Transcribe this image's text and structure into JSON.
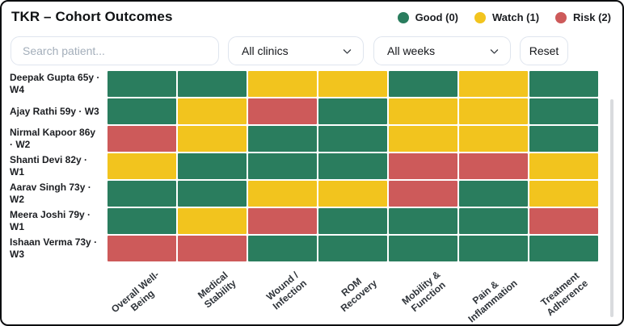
{
  "header": {
    "title": "TKR – Cohort Outcomes",
    "legend": [
      {
        "name": "good-dot",
        "label": "Good (0)",
        "color": "#2a7d5e"
      },
      {
        "name": "watch-dot",
        "label": "Watch (1)",
        "color": "#f2c41e"
      },
      {
        "name": "risk-dot",
        "label": "Risk (2)",
        "color": "#cd5a5a"
      }
    ]
  },
  "controls": {
    "search_placeholder": "Search patient...",
    "clinics_selected": "All clinics",
    "weeks_selected": "All weeks",
    "reset_label": "Reset",
    "chevron_icon": "chevron-down-icon"
  },
  "chart_data": {
    "type": "heatmap",
    "rows": [
      "Deepak Gupta 65y · W4",
      "Ajay Rathi 59y · W3",
      "Nirmal Kapoor 86y · W2",
      "Shanti Devi 82y · W1",
      "Aarav Singh 73y · W2",
      "Meera Joshi 79y · W1",
      "Ishaan Verma 73y · W3"
    ],
    "columns": [
      {
        "label": "Overall Well-Being",
        "lines": [
          "Overall Well-",
          "Being"
        ]
      },
      {
        "label": "Medical Stability",
        "lines": [
          "Medical",
          "Stability"
        ]
      },
      {
        "label": "Wound / Infection",
        "lines": [
          "Wound /",
          "Infection"
        ]
      },
      {
        "label": "ROM Recovery",
        "lines": [
          "ROM",
          "Recovery"
        ]
      },
      {
        "label": "Mobility & Function",
        "lines": [
          "Mobility &",
          "Function"
        ]
      },
      {
        "label": "Pain & Inflammation",
        "lines": [
          "Pain &",
          "Inflammation"
        ]
      },
      {
        "label": "Treatment Adherence",
        "lines": [
          "Treatment",
          "Adherence"
        ]
      }
    ],
    "values": [
      [
        0,
        0,
        1,
        1,
        0,
        1,
        0
      ],
      [
        0,
        1,
        2,
        0,
        1,
        1,
        0
      ],
      [
        2,
        1,
        0,
        0,
        1,
        1,
        0
      ],
      [
        1,
        0,
        0,
        0,
        2,
        2,
        1
      ],
      [
        0,
        0,
        1,
        1,
        2,
        0,
        1
      ],
      [
        0,
        1,
        2,
        0,
        0,
        0,
        2
      ],
      [
        2,
        2,
        0,
        0,
        0,
        0,
        0
      ]
    ],
    "scale": {
      "0": "Good",
      "1": "Watch",
      "2": "Risk"
    },
    "colors": {
      "0": "#2a7d5e",
      "1": "#f2c41e",
      "2": "#cd5a5a"
    },
    "legend_position": "top-right",
    "xlabel": "",
    "ylabel": ""
  }
}
